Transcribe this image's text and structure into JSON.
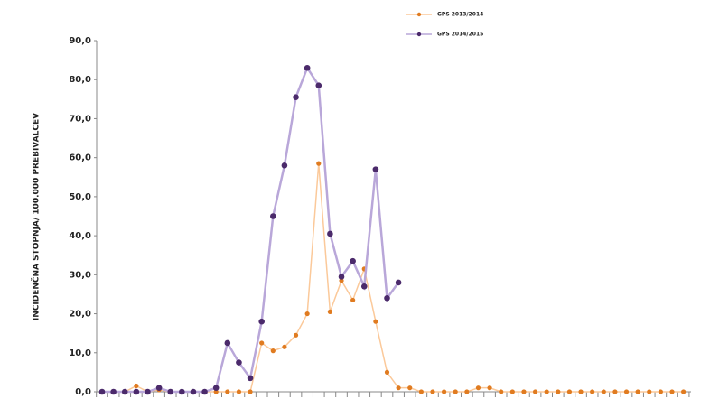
{
  "chart_data": {
    "type": "line",
    "y_label": "INCIDENČNA STOPNJA/ 100.000 PREBIVALCEV",
    "categories": [
      null,
      null,
      null,
      null,
      null,
      null,
      null,
      null,
      null,
      null,
      null,
      null,
      null,
      null,
      null,
      null,
      null,
      null,
      null,
      null,
      null,
      null,
      null,
      null,
      null,
      null,
      null,
      null,
      null,
      null,
      null,
      null,
      null,
      null,
      null,
      null,
      null,
      null,
      null,
      null,
      null,
      null,
      null,
      null,
      null,
      null,
      null,
      null,
      null,
      null,
      null,
      null
    ],
    "series": [
      {
        "name": "GPS 2013/2014",
        "color": "#e07b20",
        "line_color": "#fbc99a",
        "values": [
          0,
          0,
          0,
          1.5,
          0,
          0.5,
          0,
          0,
          0,
          0,
          0,
          0,
          0,
          0,
          12.5,
          10.5,
          11.5,
          14.5,
          20,
          58.5,
          20.5,
          28.5,
          23.5,
          31.5,
          18,
          5,
          1,
          1,
          0,
          0,
          0,
          0,
          0,
          1,
          1,
          0,
          0,
          0,
          0,
          0,
          0,
          0,
          0,
          0,
          0,
          0,
          0,
          0,
          0,
          0,
          0,
          0
        ]
      },
      {
        "name": "GPS 2014/2015",
        "color": "#4b2a6b",
        "line_color": "#b9a7d9",
        "values": [
          0,
          0,
          0,
          0,
          0,
          1,
          0,
          0,
          0,
          0,
          1,
          12.5,
          7.5,
          3.5,
          18,
          45,
          58,
          75.5,
          83,
          78.5,
          40.5,
          29.5,
          33.5,
          27,
          57,
          24,
          28,
          null,
          null,
          null,
          null,
          null,
          null,
          null,
          null,
          null,
          null,
          null,
          null,
          null,
          null,
          null,
          null,
          null,
          null,
          null,
          null,
          null,
          null,
          null,
          null,
          null
        ]
      }
    ],
    "ylim": [
      0,
      90
    ],
    "yticks": [
      {
        "value": 0,
        "label": "0,0"
      },
      {
        "value": 10,
        "label": "10,0"
      },
      {
        "value": 20,
        "label": "20,0"
      },
      {
        "value": 30,
        "label": "30,0"
      },
      {
        "value": 40,
        "label": "40,0"
      },
      {
        "value": 50,
        "label": "50,0"
      },
      {
        "value": 60,
        "label": "60,0"
      },
      {
        "value": 70,
        "label": "70,0"
      },
      {
        "value": 80,
        "label": "80,0"
      },
      {
        "value": 90,
        "label": "90,0"
      }
    ]
  }
}
